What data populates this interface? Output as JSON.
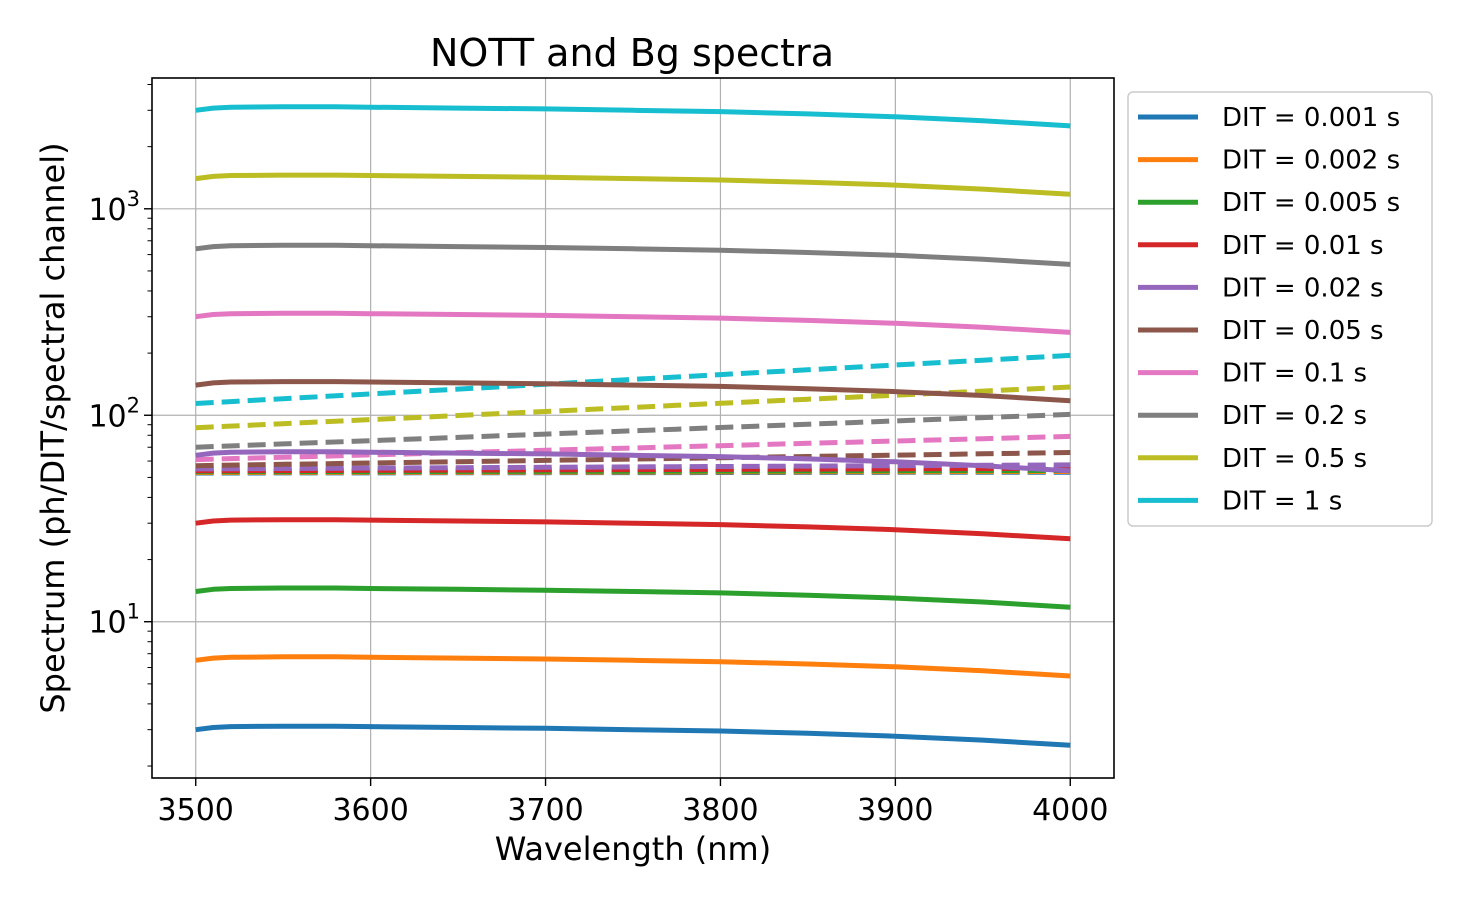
{
  "chart_data": {
    "type": "line",
    "title": "NOTT and Bg spectra",
    "xlabel": "Wavelength (nm)",
    "ylabel": "Spectrum (ph/DIT/spectral channel)",
    "xlim": [
      3475,
      4025
    ],
    "ylim": [
      1.75,
      4300
    ],
    "yscale": "log",
    "grid": true,
    "legend_position": "outside-right",
    "x_ticks": [
      3500,
      3600,
      3700,
      3800,
      3900,
      4000
    ],
    "y_ticks": [
      {
        "value": 10,
        "base": "10",
        "exp": "1"
      },
      {
        "value": 100,
        "base": "10",
        "exp": "2"
      },
      {
        "value": 1000,
        "base": "10",
        "exp": "3"
      }
    ],
    "shape": {
      "x": [
        3500,
        3510,
        3520,
        3550,
        3580,
        3600,
        3650,
        3700,
        3750,
        3800,
        3850,
        3900,
        3950,
        4000
      ],
      "y": [
        1.0,
        1.025,
        1.035,
        1.04,
        1.04,
        1.035,
        1.025,
        1.015,
        1.0,
        0.985,
        0.96,
        0.93,
        0.89,
        0.84
      ]
    },
    "bg_x": [
      3500,
      4000
    ],
    "series": [
      {
        "name": "DIT = 0.001 s",
        "color": "#1f77b4",
        "nott_peak": 3.0,
        "bg": [
          52.5,
          53.0
        ]
      },
      {
        "name": "DIT = 0.002 s",
        "color": "#ff7f0e",
        "nott_peak": 6.5,
        "bg": [
          52.8,
          53.4
        ]
      },
      {
        "name": "DIT = 0.005 s",
        "color": "#2ca02c",
        "nott_peak": 14.0,
        "bg": [
          53.2,
          54.0
        ]
      },
      {
        "name": "DIT = 0.01 s",
        "color": "#d62728",
        "nott_peak": 30.0,
        "bg": [
          53.8,
          55.3
        ]
      },
      {
        "name": "DIT = 0.02 s",
        "color": "#9467bd",
        "nott_peak": 64.0,
        "bg": [
          55.0,
          57.5
        ]
      },
      {
        "name": "DIT = 0.05 s",
        "color": "#8c564b",
        "nott_peak": 140.0,
        "bg": [
          57.0,
          66.0
        ]
      },
      {
        "name": "DIT = 0.1 s",
        "color": "#e377c2",
        "nott_peak": 300.0,
        "bg": [
          61.0,
          79.0
        ]
      },
      {
        "name": "DIT = 0.2 s",
        "color": "#7f7f7f",
        "nott_peak": 640.0,
        "bg": [
          70.0,
          101.0
        ]
      },
      {
        "name": "DIT = 0.5 s",
        "color": "#bcbd22",
        "nott_peak": 1400.0,
        "bg": [
          87.0,
          137.0
        ]
      },
      {
        "name": "DIT = 1 s",
        "color": "#17becf",
        "nott_peak": 3000.0,
        "bg": [
          114.0,
          195.0
        ]
      }
    ]
  }
}
